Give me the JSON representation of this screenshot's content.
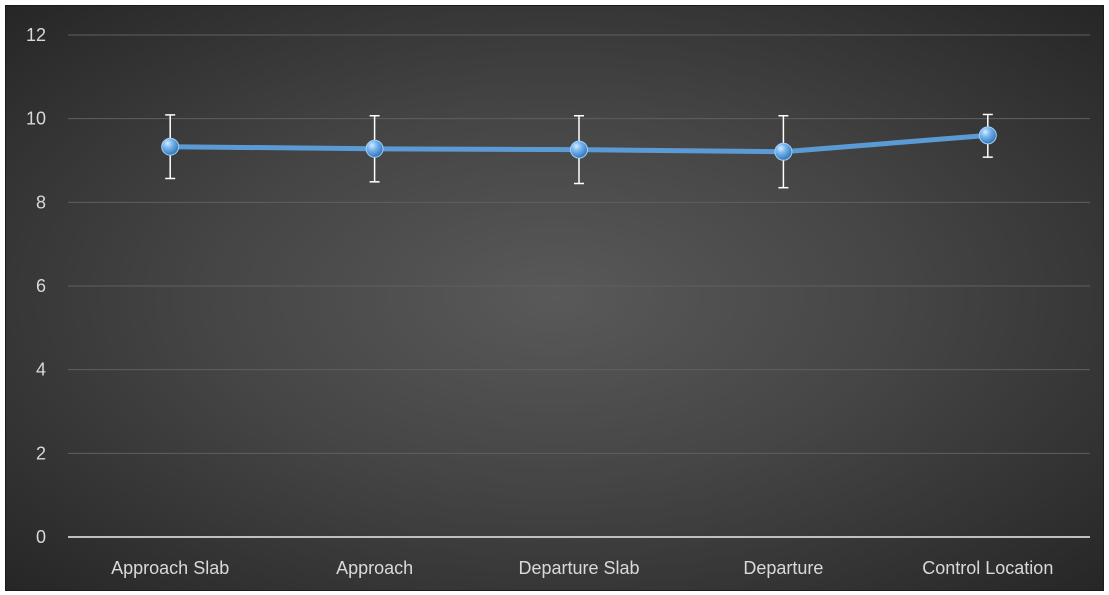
{
  "chart_data": {
    "type": "line",
    "categories": [
      "Approach Slab",
      "Approach",
      "Departure Slab",
      "Departure",
      "Control Location"
    ],
    "series": [
      {
        "values": [
          9.33,
          9.28,
          9.26,
          9.21,
          9.6
        ],
        "error_low": [
          8.57,
          8.49,
          8.45,
          8.35,
          9.08
        ],
        "error_high": [
          10.09,
          10.07,
          10.07,
          10.07,
          10.1
        ]
      }
    ],
    "ylim": [
      0,
      12
    ],
    "y_ticks": [
      0,
      2,
      4,
      6,
      8,
      10,
      12
    ],
    "grid": true,
    "title": "",
    "xlabel": "",
    "ylabel": "",
    "colors": {
      "line": "#5b9bd5",
      "marker": "#6fb2ef",
      "error_bar": "#ffffff",
      "grid": "#5f5f5f",
      "axis": "#bfbfbf",
      "text": "#d9d9d9"
    }
  }
}
